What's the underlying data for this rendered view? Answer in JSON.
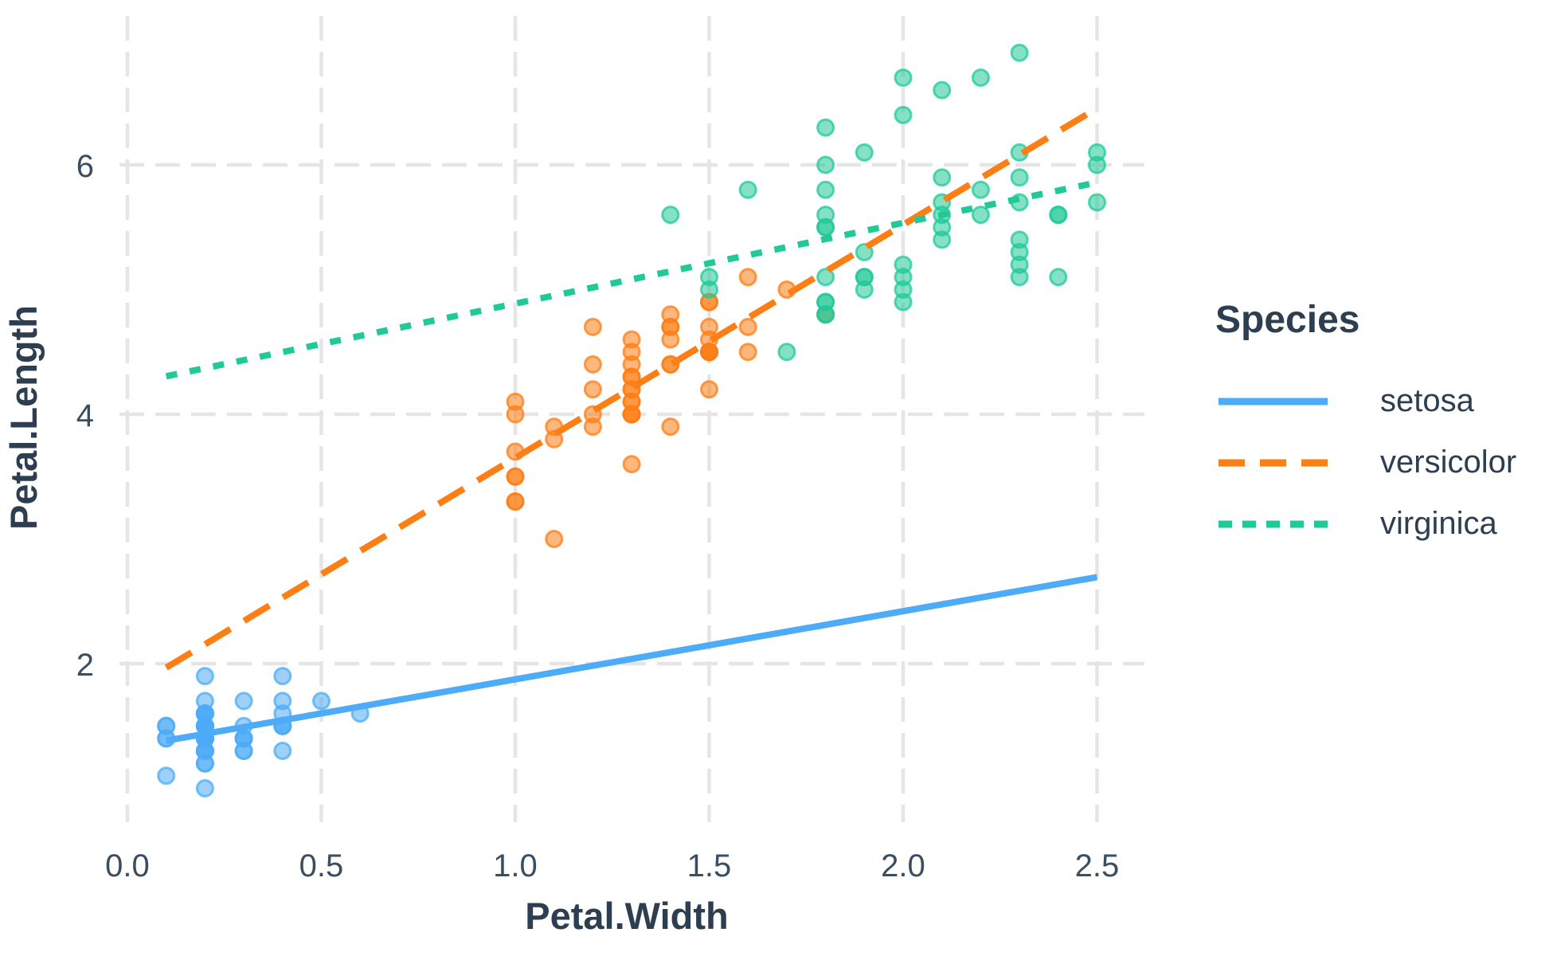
{
  "chart_data": {
    "type": "scatter",
    "title": "",
    "xlabel": "Petal.Width",
    "ylabel": "Petal.Length",
    "grid": "dashed-major",
    "background": "#FFFFFF",
    "text_color": "#2C3E50",
    "tick_color": "#3A4E61",
    "grid_color": "#E5E5E5",
    "xlim": [
      0.1,
      2.5
    ],
    "ylim": [
      1.0,
      6.9
    ],
    "x_ticks": [
      {
        "v": 0.0,
        "label": "0.0"
      },
      {
        "v": 0.5,
        "label": "0.5"
      },
      {
        "v": 1.0,
        "label": "1.0"
      },
      {
        "v": 1.5,
        "label": "1.5"
      },
      {
        "v": 2.0,
        "label": "2.0"
      },
      {
        "v": 2.5,
        "label": "2.5"
      }
    ],
    "y_ticks": [
      {
        "v": 2,
        "label": "2"
      },
      {
        "v": 4,
        "label": "4"
      },
      {
        "v": 6,
        "label": "6"
      }
    ],
    "legend": {
      "title": "Species",
      "position": "right"
    },
    "series": [
      {
        "name": "setosa",
        "color": "#4DABF7",
        "line_style": "solid",
        "dash": "",
        "legend_dash": "",
        "trend": {
          "x1": 0.1,
          "y1": 1.382,
          "x2": 2.5,
          "y2": 2.694
        },
        "points": {
          "x": [
            0.2,
            0.2,
            0.2,
            0.2,
            0.2,
            0.4,
            0.3,
            0.2,
            0.2,
            0.1,
            0.2,
            0.2,
            0.1,
            0.1,
            0.2,
            0.4,
            0.4,
            0.3,
            0.3,
            0.3,
            0.2,
            0.4,
            0.2,
            0.5,
            0.2,
            0.2,
            0.4,
            0.2,
            0.2,
            0.2,
            0.2,
            0.4,
            0.1,
            0.2,
            0.2,
            0.2,
            0.2,
            0.1,
            0.2,
            0.2,
            0.3,
            0.3,
            0.2,
            0.6,
            0.4,
            0.3,
            0.2,
            0.2,
            0.2,
            0.2
          ],
          "y": [
            1.4,
            1.4,
            1.3,
            1.5,
            1.4,
            1.7,
            1.4,
            1.5,
            1.4,
            1.5,
            1.5,
            1.6,
            1.4,
            1.1,
            1.2,
            1.5,
            1.3,
            1.4,
            1.7,
            1.5,
            1.7,
            1.5,
            1.0,
            1.7,
            1.9,
            1.6,
            1.6,
            1.5,
            1.4,
            1.6,
            1.6,
            1.5,
            1.5,
            1.4,
            1.5,
            1.2,
            1.3,
            1.4,
            1.3,
            1.5,
            1.3,
            1.3,
            1.3,
            1.6,
            1.9,
            1.4,
            1.6,
            1.4,
            1.5,
            1.4
          ]
        }
      },
      {
        "name": "versicolor",
        "color": "#FD7E14",
        "line_style": "dashed",
        "dash": "37 20",
        "legend_dash": "33 19",
        "trend": {
          "x1": 0.1,
          "y1": 1.968,
          "x2": 2.5,
          "y2": 6.455
        },
        "points": {
          "x": [
            1.4,
            1.5,
            1.5,
            1.3,
            1.5,
            1.3,
            1.6,
            1.0,
            1.3,
            1.4,
            1.0,
            1.5,
            1.0,
            1.4,
            1.3,
            1.4,
            1.5,
            1.0,
            1.5,
            1.1,
            1.8,
            1.3,
            1.5,
            1.2,
            1.3,
            1.4,
            1.4,
            1.7,
            1.5,
            1.0,
            1.1,
            1.0,
            1.2,
            1.6,
            1.5,
            1.6,
            1.5,
            1.3,
            1.3,
            1.3,
            1.2,
            1.4,
            1.2,
            1.0,
            1.3,
            1.2,
            1.3,
            1.3,
            1.1,
            1.3
          ],
          "y": [
            4.7,
            4.5,
            4.9,
            4.0,
            4.6,
            4.5,
            4.7,
            3.3,
            4.6,
            3.9,
            3.5,
            4.2,
            4.0,
            4.7,
            3.6,
            4.4,
            4.5,
            4.1,
            4.5,
            3.9,
            4.8,
            4.0,
            4.9,
            4.7,
            4.3,
            4.4,
            4.8,
            5.0,
            4.5,
            3.5,
            3.8,
            3.7,
            3.9,
            5.1,
            4.5,
            4.5,
            4.7,
            4.4,
            4.1,
            4.0,
            4.4,
            4.6,
            4.0,
            3.3,
            4.2,
            4.2,
            4.2,
            4.3,
            3.0,
            4.1
          ]
        }
      },
      {
        "name": "virginica",
        "color": "#20C997",
        "line_style": "dotted",
        "dash": "14 16",
        "legend_dash": "17 13",
        "trend": {
          "x1": 0.1,
          "y1": 4.305,
          "x2": 2.5,
          "y2": 5.859
        },
        "points": {
          "x": [
            2.5,
            1.9,
            2.1,
            1.8,
            2.2,
            2.1,
            1.7,
            1.8,
            1.8,
            2.5,
            2.0,
            1.9,
            2.1,
            2.0,
            2.4,
            2.3,
            1.8,
            2.2,
            2.3,
            1.5,
            2.3,
            2.0,
            2.0,
            1.8,
            2.1,
            1.8,
            1.8,
            1.8,
            2.1,
            1.6,
            1.9,
            2.0,
            2.2,
            1.5,
            1.4,
            2.3,
            2.4,
            1.8,
            1.8,
            2.1,
            2.4,
            2.3,
            1.9,
            2.3,
            2.5,
            2.3,
            1.9,
            2.0,
            2.3,
            1.8
          ],
          "y": [
            6.0,
            5.1,
            5.9,
            5.6,
            5.8,
            6.6,
            4.5,
            6.3,
            5.8,
            6.1,
            5.1,
            5.3,
            5.5,
            5.0,
            5.1,
            5.3,
            5.5,
            6.7,
            6.9,
            5.0,
            5.7,
            4.9,
            6.7,
            4.9,
            5.7,
            6.0,
            4.8,
            4.9,
            5.6,
            5.8,
            6.1,
            6.4,
            5.6,
            5.1,
            5.6,
            6.1,
            5.6,
            5.5,
            4.8,
            5.4,
            5.6,
            5.1,
            5.1,
            5.9,
            5.7,
            5.2,
            5.0,
            5.2,
            5.4,
            5.1
          ]
        }
      }
    ]
  }
}
